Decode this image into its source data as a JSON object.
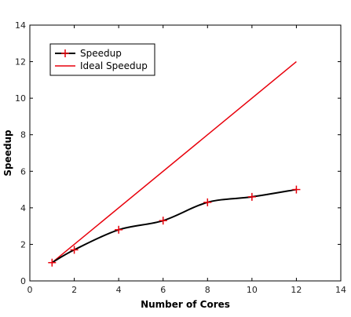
{
  "chart_data": {
    "type": "line",
    "title": "",
    "xlabel": "Number of Cores",
    "ylabel": "Speedup",
    "xlim": [
      0,
      14
    ],
    "ylim": [
      0,
      14
    ],
    "xticks": [
      0,
      2,
      4,
      6,
      8,
      10,
      12,
      14
    ],
    "yticks": [
      0,
      2,
      4,
      6,
      8,
      10,
      12,
      14
    ],
    "grid": false,
    "legend_position": "top-left",
    "series": [
      {
        "name": "Speedup",
        "color": "#000000",
        "marker_color": "#e8000b",
        "marker": "plus",
        "smooth": true,
        "x": [
          1,
          2,
          4,
          6,
          8,
          10,
          12
        ],
        "y": [
          1.0,
          1.7,
          2.8,
          3.3,
          4.3,
          4.6,
          5.0
        ]
      },
      {
        "name": "Ideal Speedup",
        "color": "#e8000b",
        "marker": "none",
        "x": [
          1,
          12
        ],
        "y": [
          1,
          12
        ]
      }
    ]
  }
}
